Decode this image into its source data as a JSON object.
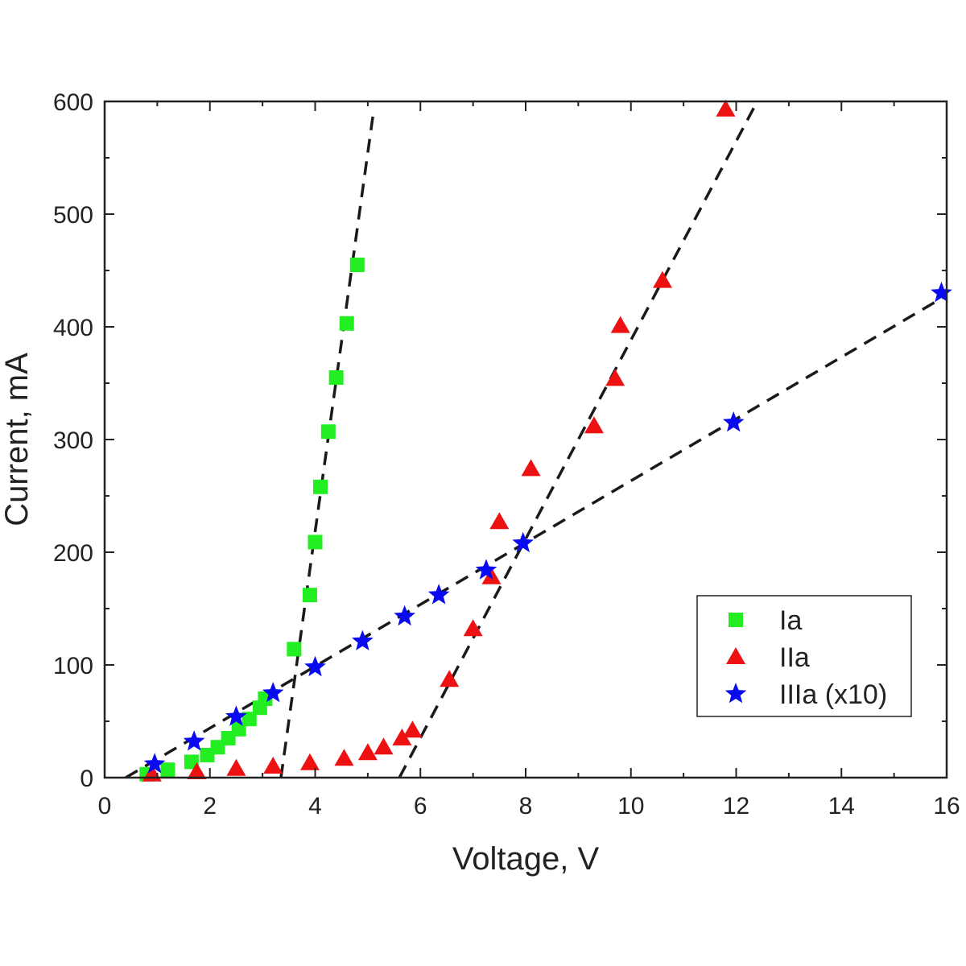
{
  "chart_data": {
    "type": "scatter",
    "title": "",
    "xlabel": "Voltage, V",
    "ylabel": "Current, mA",
    "xlim": [
      0,
      16
    ],
    "ylim": [
      0,
      600
    ],
    "xticks": [
      0,
      2,
      4,
      6,
      8,
      10,
      12,
      14,
      16
    ],
    "yticks": [
      0,
      100,
      200,
      300,
      400,
      500,
      600
    ],
    "grid": false,
    "legend_position": "bottom-right",
    "colors": {
      "axis": "#222222",
      "fit_line": "#1a1a1a"
    },
    "series": [
      {
        "name": "Ia",
        "marker": "square",
        "color": "#22ee22",
        "x": [
          0.8,
          1.2,
          1.65,
          1.95,
          2.15,
          2.35,
          2.55,
          2.75,
          2.95,
          3.05,
          3.6,
          3.9,
          4.0,
          4.1,
          4.25,
          4.4,
          4.6,
          4.8
        ],
        "y": [
          3,
          7,
          14,
          20,
          27,
          35,
          43,
          52,
          62,
          70,
          114,
          162,
          209,
          258,
          307,
          355,
          403,
          455
        ]
      },
      {
        "name": "IIa",
        "marker": "triangle",
        "color": "#ee1111",
        "x": [
          0.9,
          1.75,
          2.5,
          3.2,
          3.9,
          4.55,
          5.0,
          5.3,
          5.65,
          5.85,
          6.55,
          7.0,
          7.35,
          7.5,
          8.1,
          9.3,
          9.7,
          9.8,
          10.6,
          11.8
        ],
        "y": [
          3,
          5,
          8,
          10,
          13,
          17,
          22,
          27,
          35,
          42,
          87,
          132,
          178,
          227,
          274,
          312,
          354,
          401,
          441,
          593
        ]
      },
      {
        "name": "IIIa (x10)",
        "marker": "star",
        "color": "#0a0af0",
        "x": [
          0.95,
          1.7,
          2.5,
          3.2,
          4.0,
          4.9,
          5.7,
          6.35,
          7.25,
          7.95,
          11.95,
          15.9
        ],
        "y": [
          12,
          32,
          54,
          75,
          98,
          121,
          143,
          162,
          184,
          208,
          315,
          430
        ]
      }
    ],
    "fit_lines": [
      {
        "series": "Ia",
        "x": [
          3.35,
          5.1
        ],
        "y": [
          0,
          588
        ]
      },
      {
        "series": "IIa",
        "x": [
          5.6,
          12.4
        ],
        "y": [
          0,
          600
        ]
      },
      {
        "series": "IIIa (x10)",
        "x": [
          0.4,
          16.0
        ],
        "y": [
          0,
          428
        ]
      }
    ]
  }
}
